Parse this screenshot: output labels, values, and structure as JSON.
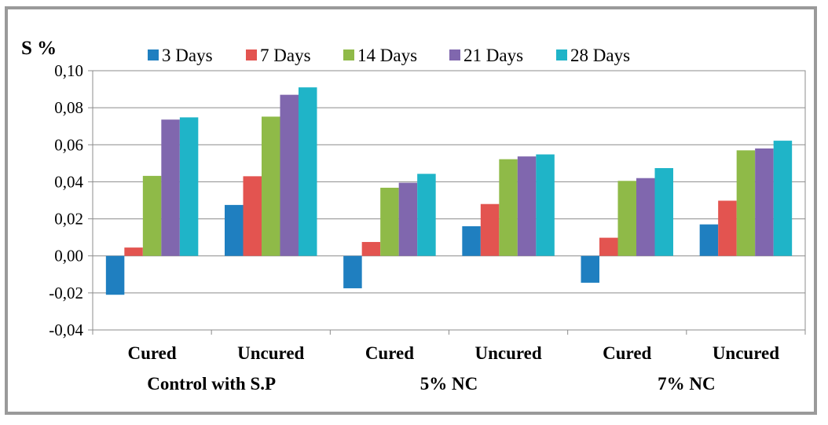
{
  "chart_data": {
    "type": "bar",
    "ylabel": "S %",
    "ylim": [
      -0.04,
      0.1
    ],
    "yticks": [
      "-0,04",
      "-0,02",
      "0,00",
      "0,02",
      "0,04",
      "0,06",
      "0,08",
      "0,10"
    ],
    "ytick_values": [
      -0.04,
      -0.02,
      0.0,
      0.02,
      0.04,
      0.06,
      0.08,
      0.1
    ],
    "categories": [
      "Cured",
      "Uncured",
      "Cured",
      "Uncured",
      "Cured",
      "Uncured"
    ],
    "groups": [
      "Control with S.P",
      "5% NC",
      "7% NC"
    ],
    "grid": true,
    "legend_position": "top",
    "series": [
      {
        "name": "3 Days",
        "color": "#1f7fc0",
        "values": [
          -0.021,
          0.0275,
          -0.0175,
          0.016,
          -0.0145,
          0.017
        ]
      },
      {
        "name": "7 Days",
        "color": "#e35450",
        "values": [
          0.0045,
          0.043,
          0.0075,
          0.028,
          0.0098,
          0.0298
        ]
      },
      {
        "name": "14 Days",
        "color": "#8fba48",
        "values": [
          0.0432,
          0.0752,
          0.0368,
          0.0522,
          0.0405,
          0.057
        ]
      },
      {
        "name": "21 Days",
        "color": "#8067ae",
        "values": [
          0.0736,
          0.087,
          0.0395,
          0.0537,
          0.042,
          0.058
        ]
      },
      {
        "name": "28 Days",
        "color": "#1fb4c8",
        "values": [
          0.0748,
          0.091,
          0.0443,
          0.0548,
          0.0474,
          0.0622
        ]
      }
    ]
  }
}
